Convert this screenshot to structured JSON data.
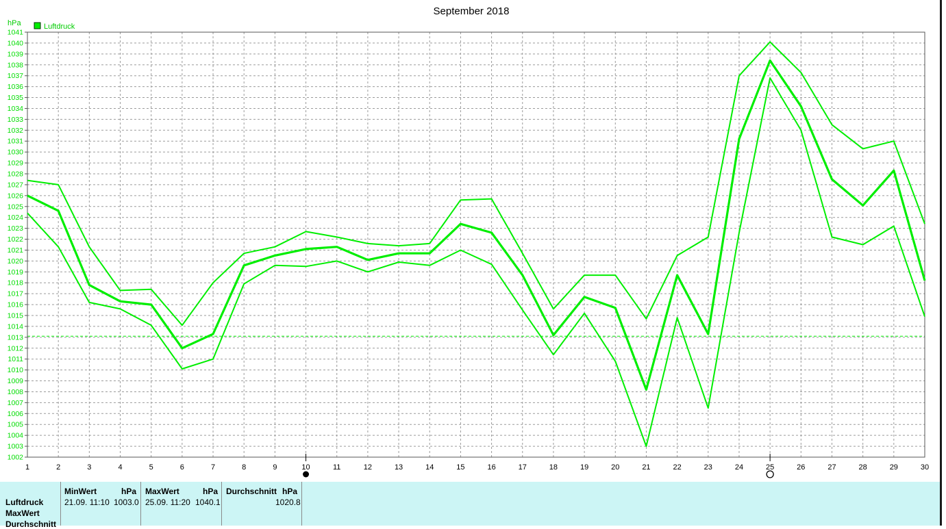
{
  "chart_data": {
    "type": "line",
    "title": "September 2018",
    "ylabel": "hPa",
    "legend": "Luftdruck",
    "legend_position": "top-left",
    "ylim": [
      1002,
      1041
    ],
    "y_ticks": [
      1002,
      1003,
      1004,
      1005,
      1006,
      1007,
      1008,
      1009,
      1010,
      1011,
      1012,
      1013,
      1014,
      1015,
      1016,
      1017,
      1018,
      1019,
      1020,
      1021,
      1022,
      1023,
      1024,
      1025,
      1026,
      1027,
      1028,
      1029,
      1030,
      1031,
      1032,
      1033,
      1034,
      1035,
      1036,
      1037,
      1038,
      1039,
      1040,
      1041
    ],
    "x": [
      1,
      2,
      3,
      4,
      5,
      6,
      7,
      8,
      9,
      10,
      11,
      12,
      13,
      14,
      15,
      16,
      17,
      18,
      19,
      20,
      21,
      22,
      23,
      24,
      25,
      26,
      27,
      28,
      29,
      30
    ],
    "grid": true,
    "reference_line": 1013.1,
    "markers": [
      {
        "x": 10,
        "symbol": "filled-circle"
      },
      {
        "x": 25,
        "symbol": "open-circle"
      }
    ],
    "series": [
      {
        "role": "max",
        "values": [
          1027.4,
          1027.0,
          1021.3,
          1017.3,
          1017.4,
          1014.1,
          1018.0,
          1020.7,
          1021.3,
          1022.7,
          1022.2,
          1021.6,
          1021.4,
          1021.6,
          1025.6,
          1025.7,
          1020.7,
          1015.6,
          1018.7,
          1018.7,
          1014.7,
          1020.5,
          1022.2,
          1037.0,
          1040.1,
          1037.3,
          1032.5,
          1030.3,
          1031.0,
          1023.4
        ]
      },
      {
        "role": "mean",
        "values": [
          1026.0,
          1024.6,
          1017.8,
          1016.3,
          1016.0,
          1012.0,
          1013.3,
          1019.6,
          1020.5,
          1021.1,
          1021.3,
          1020.1,
          1020.7,
          1020.7,
          1023.4,
          1022.6,
          1018.7,
          1013.2,
          1016.7,
          1015.7,
          1008.2,
          1018.7,
          1013.3,
          1031.2,
          1038.4,
          1034.2,
          1027.5,
          1025.1,
          1028.3,
          1018.2
        ]
      },
      {
        "role": "min",
        "values": [
          1024.4,
          1021.3,
          1016.2,
          1015.6,
          1014.1,
          1010.1,
          1011.0,
          1017.9,
          1019.6,
          1019.5,
          1020.0,
          1019.0,
          1019.9,
          1019.6,
          1021.0,
          1019.7,
          1015.5,
          1011.4,
          1015.2,
          1010.8,
          1003.0,
          1014.8,
          1006.5,
          1022.6,
          1036.8,
          1032.0,
          1022.2,
          1021.5,
          1023.2,
          1014.9
        ]
      }
    ]
  },
  "colors": {
    "series": "#00ee00",
    "axis_text": "#00dd00",
    "grid": "#9a9a9a"
  },
  "summary": {
    "row_labels": [
      "Luftdruck",
      "MaxWert",
      "Durchschnitt"
    ],
    "min_header": "MinWert",
    "max_header": "MaxWert",
    "avg_header": "Durchschnitt",
    "unit": "hPa",
    "min_time": "21.09.  11:10",
    "min_value": "1003.0",
    "max_time": "25.09.  11:20",
    "max_value": "1040.1",
    "avg_value": "1020.8"
  }
}
